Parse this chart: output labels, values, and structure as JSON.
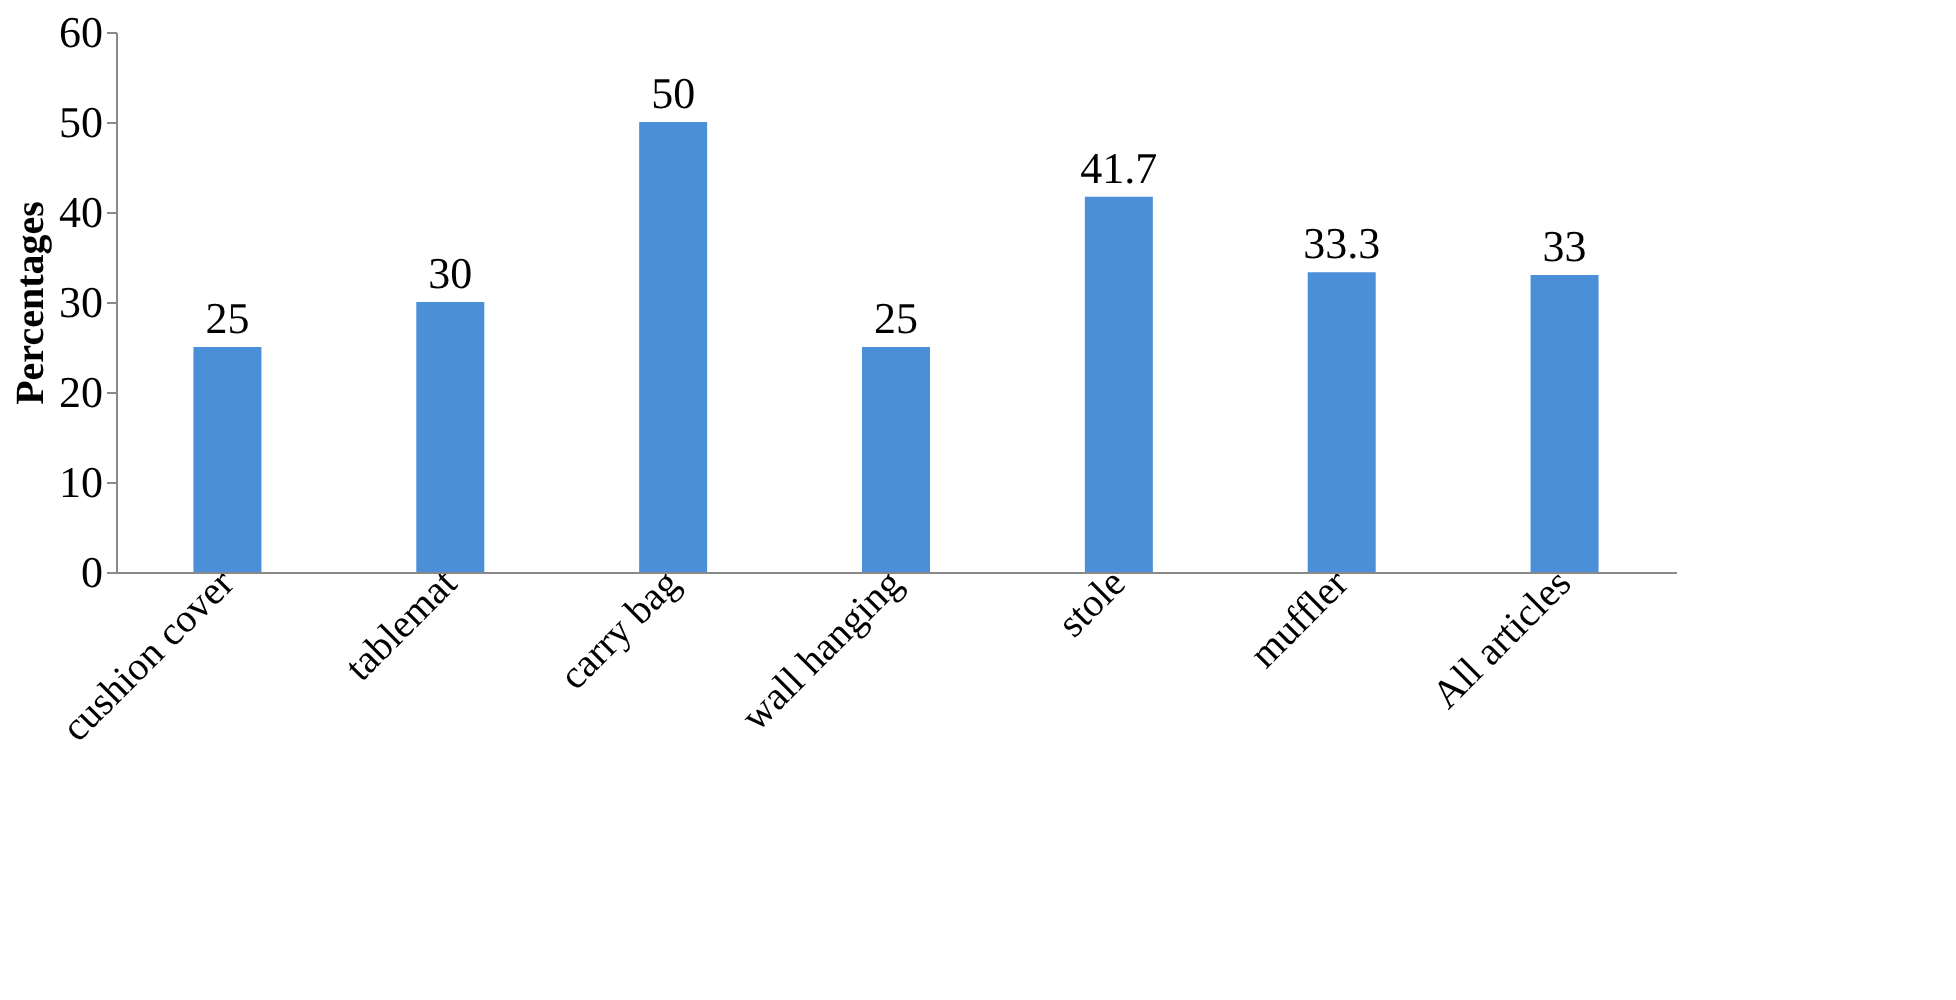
{
  "chart_data": {
    "type": "bar",
    "ylabel": "Percentages",
    "categories": [
      "cushion cover",
      "tablemat",
      "carry bag",
      "wall hanging",
      "stole",
      "muffler",
      "All articles"
    ],
    "values": [
      25,
      30,
      50,
      25,
      41.7,
      33.3,
      33
    ],
    "color": "#4a8fd8",
    "ylim": [
      0,
      60
    ],
    "yticks": [
      0,
      10,
      20,
      30,
      40,
      50,
      60
    ],
    "data_labels": true,
    "grid": false
  }
}
